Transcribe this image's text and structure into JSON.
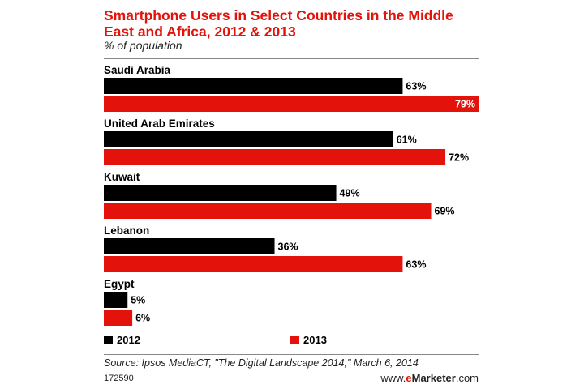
{
  "chart_data": {
    "type": "bar",
    "orientation": "horizontal",
    "title": "Smartphone Users in Select Countries in the Middle East and Africa, 2012 & 2013",
    "subtitle": "% of population",
    "categories": [
      "Saudi Arabia",
      "United Arab Emirates",
      "Kuwait",
      "Lebanon",
      "Egypt"
    ],
    "series": [
      {
        "name": "2012",
        "color": "#000000",
        "values": [
          63,
          61,
          49,
          36,
          5
        ],
        "labels": [
          "63%",
          "61%",
          "49%",
          "36%",
          "5%"
        ]
      },
      {
        "name": "2013",
        "color": "#e3120b",
        "values": [
          79,
          72,
          69,
          63,
          6
        ],
        "labels": [
          "79%",
          "72%",
          "69%",
          "63%",
          "6%"
        ]
      }
    ],
    "xlim": [
      0,
      79
    ],
    "grid": false,
    "legend": "bottom-left"
  },
  "footer": {
    "source": "Source: Ipsos MediaCT, \"The Digital Landscape 2014,\" March 6, 2014",
    "chart_id": "172590",
    "brand_prefix": "www.",
    "brand_e": "e",
    "brand_name": "Marketer",
    "brand_suffix": ".com"
  }
}
